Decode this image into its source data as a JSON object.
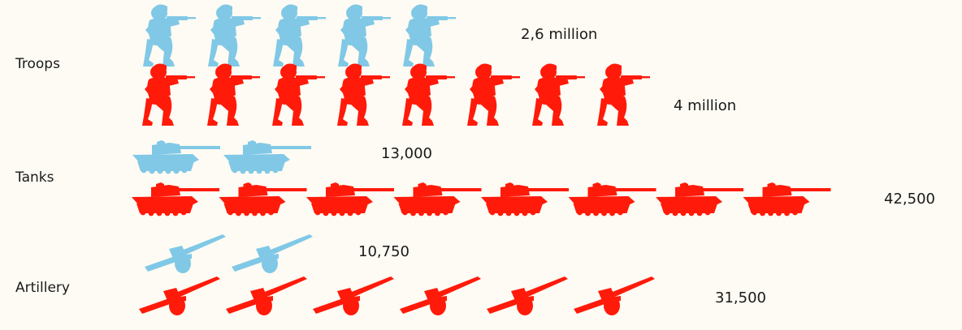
{
  "chart_data": {
    "type": "bar",
    "style": "pictogram",
    "categories": [
      "Troops",
      "Tanks",
      "Artillery"
    ],
    "series": [
      {
        "color": "#80c8e6",
        "values": [
          2600000,
          13000,
          10750
        ],
        "value_labels": [
          "2,6 million",
          "13,000",
          "10,750"
        ],
        "icon_counts": [
          5.1,
          2.6,
          2.2
        ]
      },
      {
        "color": "#ff1a0a",
        "values": [
          4000000,
          42500,
          31500
        ],
        "value_labels": [
          "4 million",
          "42,500",
          "31,500"
        ],
        "icon_counts": [
          8,
          8.4,
          6.5
        ]
      }
    ],
    "icons": [
      "soldier-icon",
      "tank-icon",
      "artillery-icon"
    ]
  }
}
